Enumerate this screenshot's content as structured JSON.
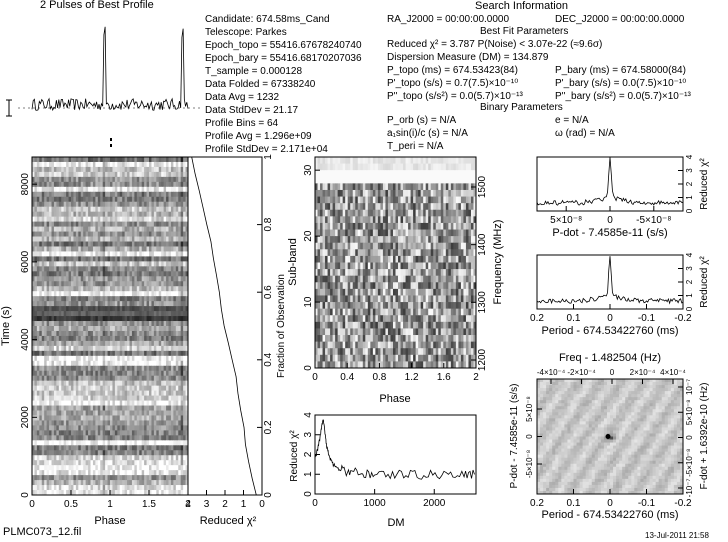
{
  "title": "2 Pulses of Best Profile",
  "footer": {
    "filename": "PLMC073_12.fil",
    "date": "13-Jul-2011 21:58"
  },
  "search_info": {
    "heading": "Search Information",
    "candidate": "Candidate:  674.58ms_Cand",
    "telescope": "Telescope:  Parkes",
    "epoch_topo": "Epoch_topo = 55416.67678240740",
    "epoch_bary": "Epoch_bary = 55416.68170207036",
    "t_sample": "T_sample = 0.000128",
    "data_folded": "Data Folded = 67338240",
    "data_avg": "Data Avg = 1232",
    "data_stddev": "Data StdDev = 21.17",
    "profile_bins": "Profile Bins = 64",
    "profile_avg": "Profile Avg = 1.296e+09",
    "profile_stddev": "Profile StdDev = 2.171e+04",
    "ra": "RA_J2000 = 00:00:00.0000",
    "dec": "DEC_J2000 = 00:00:00.0000",
    "best_fit_heading": "Best Fit Parameters",
    "reduced_chi2": "Reduced χ² = 3.787   P(Noise) < 3.07e-22   (≈9.6σ)",
    "dm": "Dispersion Measure (DM) = 134.879",
    "p_topo": "P_topo (ms) = 674.53423(84)",
    "pdot_topo": "P'_topo (s/s) = 0.7(7.5)×10⁻¹⁰",
    "pddot_topo": "P''_topo (s/s²) = 0.0(5.7)×10⁻¹³",
    "p_bary": "P_bary (ms) = 674.58000(84)",
    "pdot_bary": "P'_bary (s/s) = 0.0(7.5)×10⁻¹⁰",
    "pddot_bary": "P''_bary (s/s²) = 0.0(5.7)×10⁻¹³",
    "binary_heading": "Binary Parameters",
    "p_orb": "P_orb (s) = N/A",
    "a_sini": "a₁sin(i)/c (s) = N/A",
    "t_peri": "T_peri = N/A",
    "ecc": "e = N/A",
    "omega": "ω (rad) = N/A"
  },
  "chart_data": [
    {
      "name": "profile",
      "type": "line",
      "title": "2 Pulses of Best Profile",
      "xlim": [
        0,
        2
      ],
      "peak_phase": [
        0.93,
        1.93
      ],
      "grid": false
    },
    {
      "name": "time_phase",
      "type": "heatmap",
      "xlabel": "Phase",
      "ylabel": "Time (s)",
      "xlim": [
        0,
        2
      ],
      "ylim": [
        0,
        8700
      ],
      "x_ticks": [
        "0",
        "0.5",
        "1",
        "1.5",
        "2"
      ],
      "y_ticks": [
        "0",
        "2000",
        "4000",
        "6000",
        "8000"
      ],
      "right_ticks": [
        "0",
        "0.2",
        "0.4",
        "0.6",
        "0.8",
        "1"
      ],
      "right_label": "Fraction of Observation"
    },
    {
      "name": "time_chi2",
      "type": "line",
      "xlabel": "Reduced χ²",
      "x_ticks": [
        "4",
        "3",
        "2",
        "1",
        "0"
      ],
      "xlim": [
        4,
        0
      ],
      "y": [
        0,
        0.05,
        0.1,
        0.15,
        0.2,
        0.25,
        0.3,
        0.35,
        0.4,
        0.45,
        0.5,
        0.55,
        0.6,
        0.65,
        0.7,
        0.75,
        0.8,
        0.85,
        0.9,
        0.95,
        1.0
      ],
      "x": [
        0.3,
        0.5,
        0.7,
        0.85,
        1.0,
        1.15,
        1.3,
        1.45,
        1.6,
        1.8,
        2.0,
        2.15,
        2.3,
        2.5,
        2.65,
        2.8,
        3.0,
        3.2,
        3.4,
        3.6,
        3.75
      ]
    },
    {
      "name": "subband_phase",
      "type": "heatmap",
      "xlabel": "Phase",
      "ylabel": "Sub-band",
      "right_label": "Frequency (MHz)",
      "xlim": [
        0,
        2
      ],
      "ylim": [
        0,
        32
      ],
      "x_ticks": [
        "0",
        "0.4",
        "0.8",
        "1.2",
        "1.6",
        "2"
      ],
      "y_ticks": [
        "0",
        "10",
        "20",
        "30"
      ],
      "right_ticks": [
        "1200",
        "1300",
        "1400",
        "1500"
      ]
    },
    {
      "name": "dm_chi2",
      "type": "line",
      "xlabel": "DM",
      "ylabel": "Reduced χ²",
      "xlim": [
        0,
        2700
      ],
      "ylim": [
        0,
        4
      ],
      "x_ticks": [
        "0",
        "1000",
        "2000"
      ],
      "y_ticks": [
        "0",
        "1",
        "2",
        "3",
        "4"
      ],
      "x": [
        0,
        40,
        80,
        110,
        135,
        160,
        190,
        230,
        280,
        350,
        450,
        600,
        800,
        1000,
        1300,
        1600,
        1900,
        2200,
        2500,
        2700
      ],
      "y": [
        1.8,
        2.2,
        2.8,
        3.4,
        3.8,
        3.3,
        2.5,
        2.0,
        1.6,
        1.35,
        1.2,
        1.1,
        1.05,
        1.0,
        1.0,
        0.98,
        1.0,
        1.0,
        0.97,
        1.0
      ]
    },
    {
      "name": "pdot_chi2",
      "type": "line",
      "xlabel": "P-dot - 7.4585e-11 (s/s)",
      "ylabel": "Reduced χ²",
      "x_ticks": [
        "5×10⁻⁸",
        "0",
        "-5×10⁻⁸"
      ],
      "y_ticks": [
        "0",
        "1",
        "2",
        "3",
        "4"
      ],
      "xlim": [
        1e-07,
        -1e-07
      ],
      "ylim": [
        0,
        4
      ],
      "peak_x": 0,
      "peak_y": 3.8
    },
    {
      "name": "period_chi2",
      "type": "line",
      "xlabel": "Period - 674.53422760 (ms)",
      "ylabel": "Reduced χ²",
      "x_ticks": [
        "0.2",
        "0.1",
        "0",
        "-0.1",
        "-0.2"
      ],
      "y_ticks": [
        "0",
        "1",
        "2",
        "3",
        "4"
      ],
      "xlim": [
        0.2,
        -0.2
      ],
      "ylim": [
        0,
        4
      ],
      "peak_x": 0,
      "peak_y": 3.8
    },
    {
      "name": "p_pdot_plane",
      "type": "heatmap",
      "title": "Freq - 1.482504 (Hz)",
      "xlabel": "Period - 674.53422760 (ms)",
      "ylabel": "P-dot - 7.4585e-11 (s/s)",
      "right_label": "F-dot + 1.6392e-10 (Hz)",
      "x_ticks": [
        "0.2",
        "0.1",
        "0",
        "-0.1",
        "-0.2"
      ],
      "top_ticks": [
        "-4×10⁻⁴",
        "-2×10⁻⁴",
        "0",
        "2×10⁻⁴",
        "4×10⁻⁴"
      ],
      "y_ticks": [
        "5×10⁻⁸",
        "0",
        "-5×10⁻⁸"
      ],
      "right_ticks": [
        "10⁻⁷",
        "5×10⁻⁸",
        "0",
        "-5×10⁻⁸",
        "-10⁻⁷"
      ]
    }
  ]
}
